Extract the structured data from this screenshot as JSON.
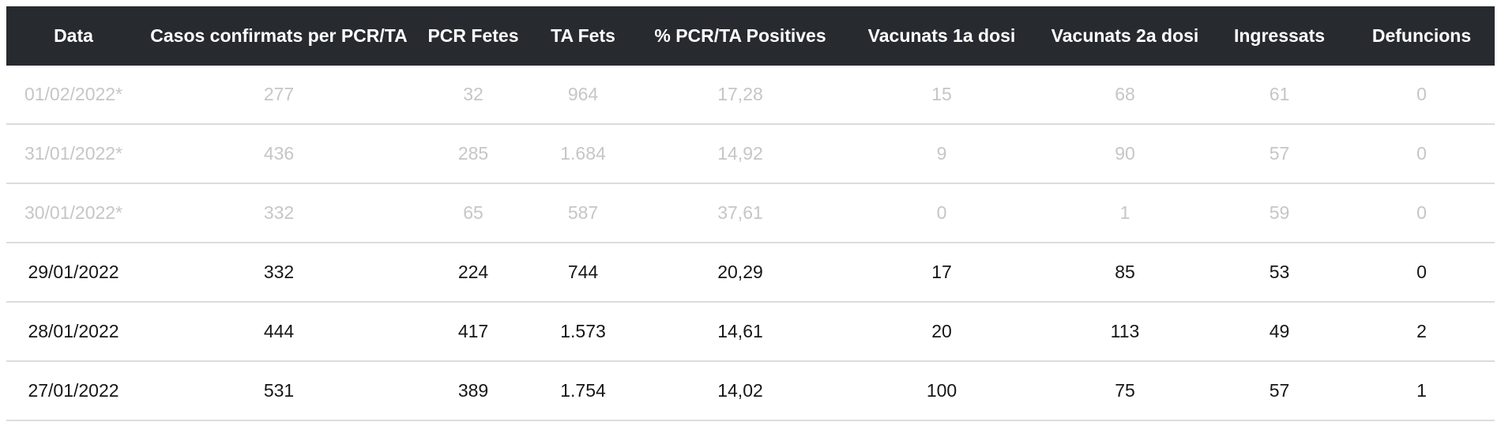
{
  "table": {
    "headers": [
      "Data",
      "Casos confirmats per PCR/TA",
      "PCR Fetes",
      "TA Fets",
      "% PCR/TA Positives",
      "Vacunats 1a dosi",
      "Vacunats 2a dosi",
      "Ingressats",
      "Defuncions"
    ],
    "rows": [
      {
        "estimated": true,
        "cells": [
          "01/02/2022*",
          "277",
          "32",
          "964",
          "17,28",
          "15",
          "68",
          "61",
          "0"
        ]
      },
      {
        "estimated": true,
        "cells": [
          "31/01/2022*",
          "436",
          "285",
          "1.684",
          "14,92",
          "9",
          "90",
          "57",
          "0"
        ]
      },
      {
        "estimated": true,
        "cells": [
          "30/01/2022*",
          "332",
          "65",
          "587",
          "37,61",
          "0",
          "1",
          "59",
          "0"
        ]
      },
      {
        "estimated": false,
        "cells": [
          "29/01/2022",
          "332",
          "224",
          "744",
          "20,29",
          "17",
          "85",
          "53",
          "0"
        ]
      },
      {
        "estimated": false,
        "cells": [
          "28/01/2022",
          "444",
          "417",
          "1.573",
          "14,61",
          "20",
          "113",
          "49",
          "2"
        ]
      },
      {
        "estimated": false,
        "cells": [
          "27/01/2022",
          "531",
          "389",
          "1.754",
          "14,02",
          "100",
          "75",
          "57",
          "1"
        ]
      }
    ]
  },
  "colors": {
    "header_background": "#272b30",
    "header_text": "#ffffff",
    "estimated_row_text": "#c6c6c6",
    "confirmed_row_text": "#161616",
    "row_divider": "#dcdcdc"
  }
}
